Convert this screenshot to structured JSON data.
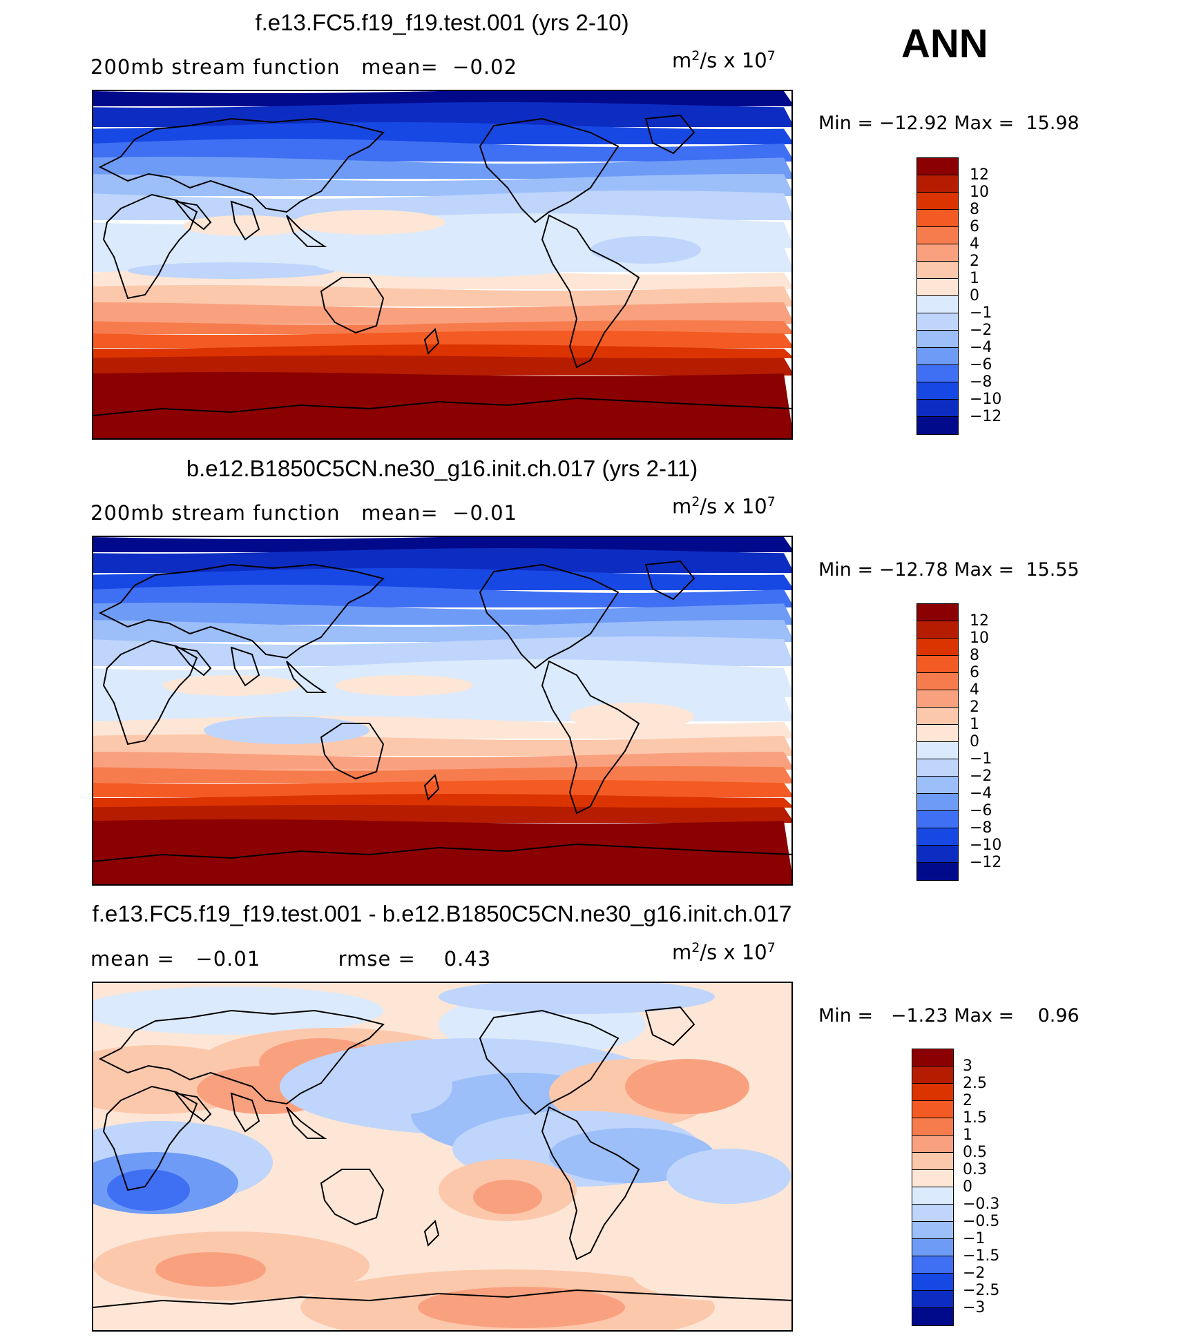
{
  "season": "ANN",
  "panels": [
    {
      "title": "f.e13.FC5.f19_f19.test.001 (yrs 2-10)",
      "subtitle": "200mb stream function   mean=  −0.02",
      "units_base": "m",
      "units_exp1": "2",
      "units_mid": "/s x 10",
      "units_exp2": "7",
      "min_label": "Min",
      "min_value": "−12.92",
      "max_label": "Max",
      "max_value": "15.98",
      "cbar_labels": [
        "12",
        "10",
        "8",
        "6",
        "4",
        "2",
        "1",
        "0",
        "−1",
        "−2",
        "−4",
        "−6",
        "−8",
        "−10",
        "−12"
      ]
    },
    {
      "title": "b.e12.B1850C5CN.ne30_g16.init.ch.017 (yrs 2-11)",
      "subtitle": "200mb stream function   mean=  −0.01",
      "units_base": "m",
      "units_exp1": "2",
      "units_mid": "/s x 10",
      "units_exp2": "7",
      "min_label": "Min",
      "min_value": "−12.78",
      "max_label": "Max",
      "max_value": "15.55",
      "cbar_labels": [
        "12",
        "10",
        "8",
        "6",
        "4",
        "2",
        "1",
        "0",
        "−1",
        "−2",
        "−4",
        "−6",
        "−8",
        "−10",
        "−12"
      ]
    },
    {
      "title": "f.e13.FC5.f19_f19.test.001 - b.e12.B1850C5CN.ne30_g16.init.ch.017",
      "subtitle": "mean =   −0.01           rmse =    0.43",
      "units_base": "m",
      "units_exp1": "2",
      "units_mid": "/s x 10",
      "units_exp2": "7",
      "min_label": "Min",
      "min_value": "−1.23",
      "max_label": "Max",
      "max_value": "0.96",
      "cbar_labels": [
        "3",
        "2.5",
        "2",
        "1.5",
        "1",
        "0.5",
        "0.3",
        "0",
        "−0.3",
        "−0.5",
        "−1",
        "−1.5",
        "−2",
        "−2.5",
        "−3"
      ]
    }
  ],
  "colors": {
    "scale": [
      "#8b0000",
      "#b51c00",
      "#dc3400",
      "#f45a23",
      "#f77c4d",
      "#f9a17f",
      "#fcc8ac",
      "#fde6d6",
      "#dbeafc",
      "#bfd5fb",
      "#9cbff9",
      "#6e9bf6",
      "#3f6ff2",
      "#1848e4",
      "#0d2dc2",
      "#020a8c"
    ]
  }
}
